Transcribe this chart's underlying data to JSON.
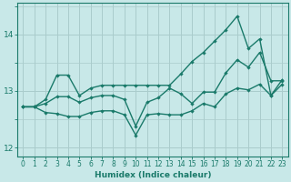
{
  "xlabel": "Humidex (Indice chaleur)",
  "xlim": [
    -0.5,
    23.5
  ],
  "ylim": [
    11.85,
    14.55
  ],
  "yticks": [
    12,
    13,
    14
  ],
  "xticks": [
    0,
    1,
    2,
    3,
    4,
    5,
    6,
    7,
    8,
    9,
    10,
    11,
    12,
    13,
    14,
    15,
    16,
    17,
    18,
    19,
    20,
    21,
    22,
    23
  ],
  "bg_color": "#c8e8e8",
  "grid_color": "#aacccc",
  "line_color": "#1a7a6a",
  "x": [
    0,
    1,
    2,
    3,
    4,
    5,
    6,
    7,
    8,
    9,
    10,
    11,
    12,
    13,
    14,
    15,
    16,
    17,
    18,
    19,
    20,
    21,
    22,
    23
  ],
  "y_top": [
    12.72,
    12.72,
    12.85,
    13.28,
    13.28,
    12.92,
    13.05,
    13.1,
    13.1,
    13.1,
    13.1,
    13.1,
    13.1,
    13.1,
    13.3,
    13.52,
    13.68,
    13.88,
    14.08,
    14.32,
    13.75,
    13.92,
    12.92,
    13.2
  ],
  "y_mid": [
    12.72,
    12.72,
    12.78,
    12.9,
    12.9,
    12.8,
    12.88,
    12.92,
    12.92,
    12.85,
    12.38,
    12.8,
    12.88,
    13.05,
    12.95,
    12.78,
    12.98,
    12.98,
    13.32,
    13.55,
    13.42,
    13.68,
    13.18,
    13.18
  ],
  "y_bot": [
    12.72,
    12.72,
    12.62,
    12.6,
    12.55,
    12.55,
    12.62,
    12.65,
    12.65,
    12.58,
    12.22,
    12.58,
    12.6,
    12.58,
    12.58,
    12.65,
    12.78,
    12.72,
    12.95,
    13.05,
    13.02,
    13.12,
    12.92,
    13.12
  ]
}
